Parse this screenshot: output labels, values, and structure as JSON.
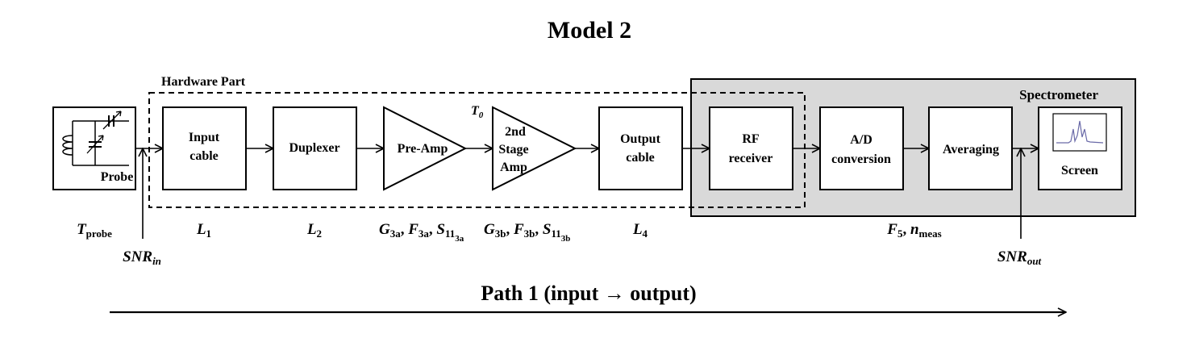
{
  "title": "Model 2",
  "hardware_label": "Hardware Part",
  "spectrometer_label": "Spectrometer",
  "probe_label": "Probe",
  "t0": {
    "main": "T",
    "sub": "0"
  },
  "blocks": {
    "input_cable": [
      "Input",
      "cable"
    ],
    "duplexer": [
      "Duplexer"
    ],
    "preamp": [
      "Pre-Amp"
    ],
    "stage2": [
      "2nd",
      "Stage",
      "Amp"
    ],
    "output_cable": [
      "Output",
      "cable"
    ],
    "rf_receiver": [
      "RF",
      "receiver"
    ],
    "ad_conversion": [
      "A/D",
      "conversion"
    ],
    "averaging": [
      "Averaging"
    ],
    "screen": [
      "Screen"
    ]
  },
  "params": {
    "tprobe": {
      "main": "T",
      "sub": "probe"
    },
    "l1": {
      "main": "L",
      "sub": "1"
    },
    "l2": {
      "main": "L",
      "sub": "2"
    },
    "stage3a": {
      "g": "G",
      "g_sub": "3a",
      "f": "F",
      "f_sub": "3a",
      "s": "S",
      "s_sub": "11",
      "s_subsub": "3a"
    },
    "stage3b": {
      "g": "G",
      "g_sub": "3b",
      "f": "F",
      "f_sub": "3b",
      "s": "S",
      "s_sub": "11",
      "s_subsub": "3b"
    },
    "l4": {
      "main": "L",
      "sub": "4"
    },
    "f5_nmeas": {
      "f": "F",
      "f_sub": "5",
      "n": "n",
      "n_sub": "meas"
    }
  },
  "snr_in": {
    "main": "SNR",
    "sub": "in"
  },
  "snr_out": {
    "main": "SNR",
    "sub": "out"
  },
  "path_label": "Path 1 (input → output)",
  "colors": {
    "spectrometer_fill": "#d9d9d9",
    "line": "#000000",
    "spectrum": "#6a6aa8"
  }
}
